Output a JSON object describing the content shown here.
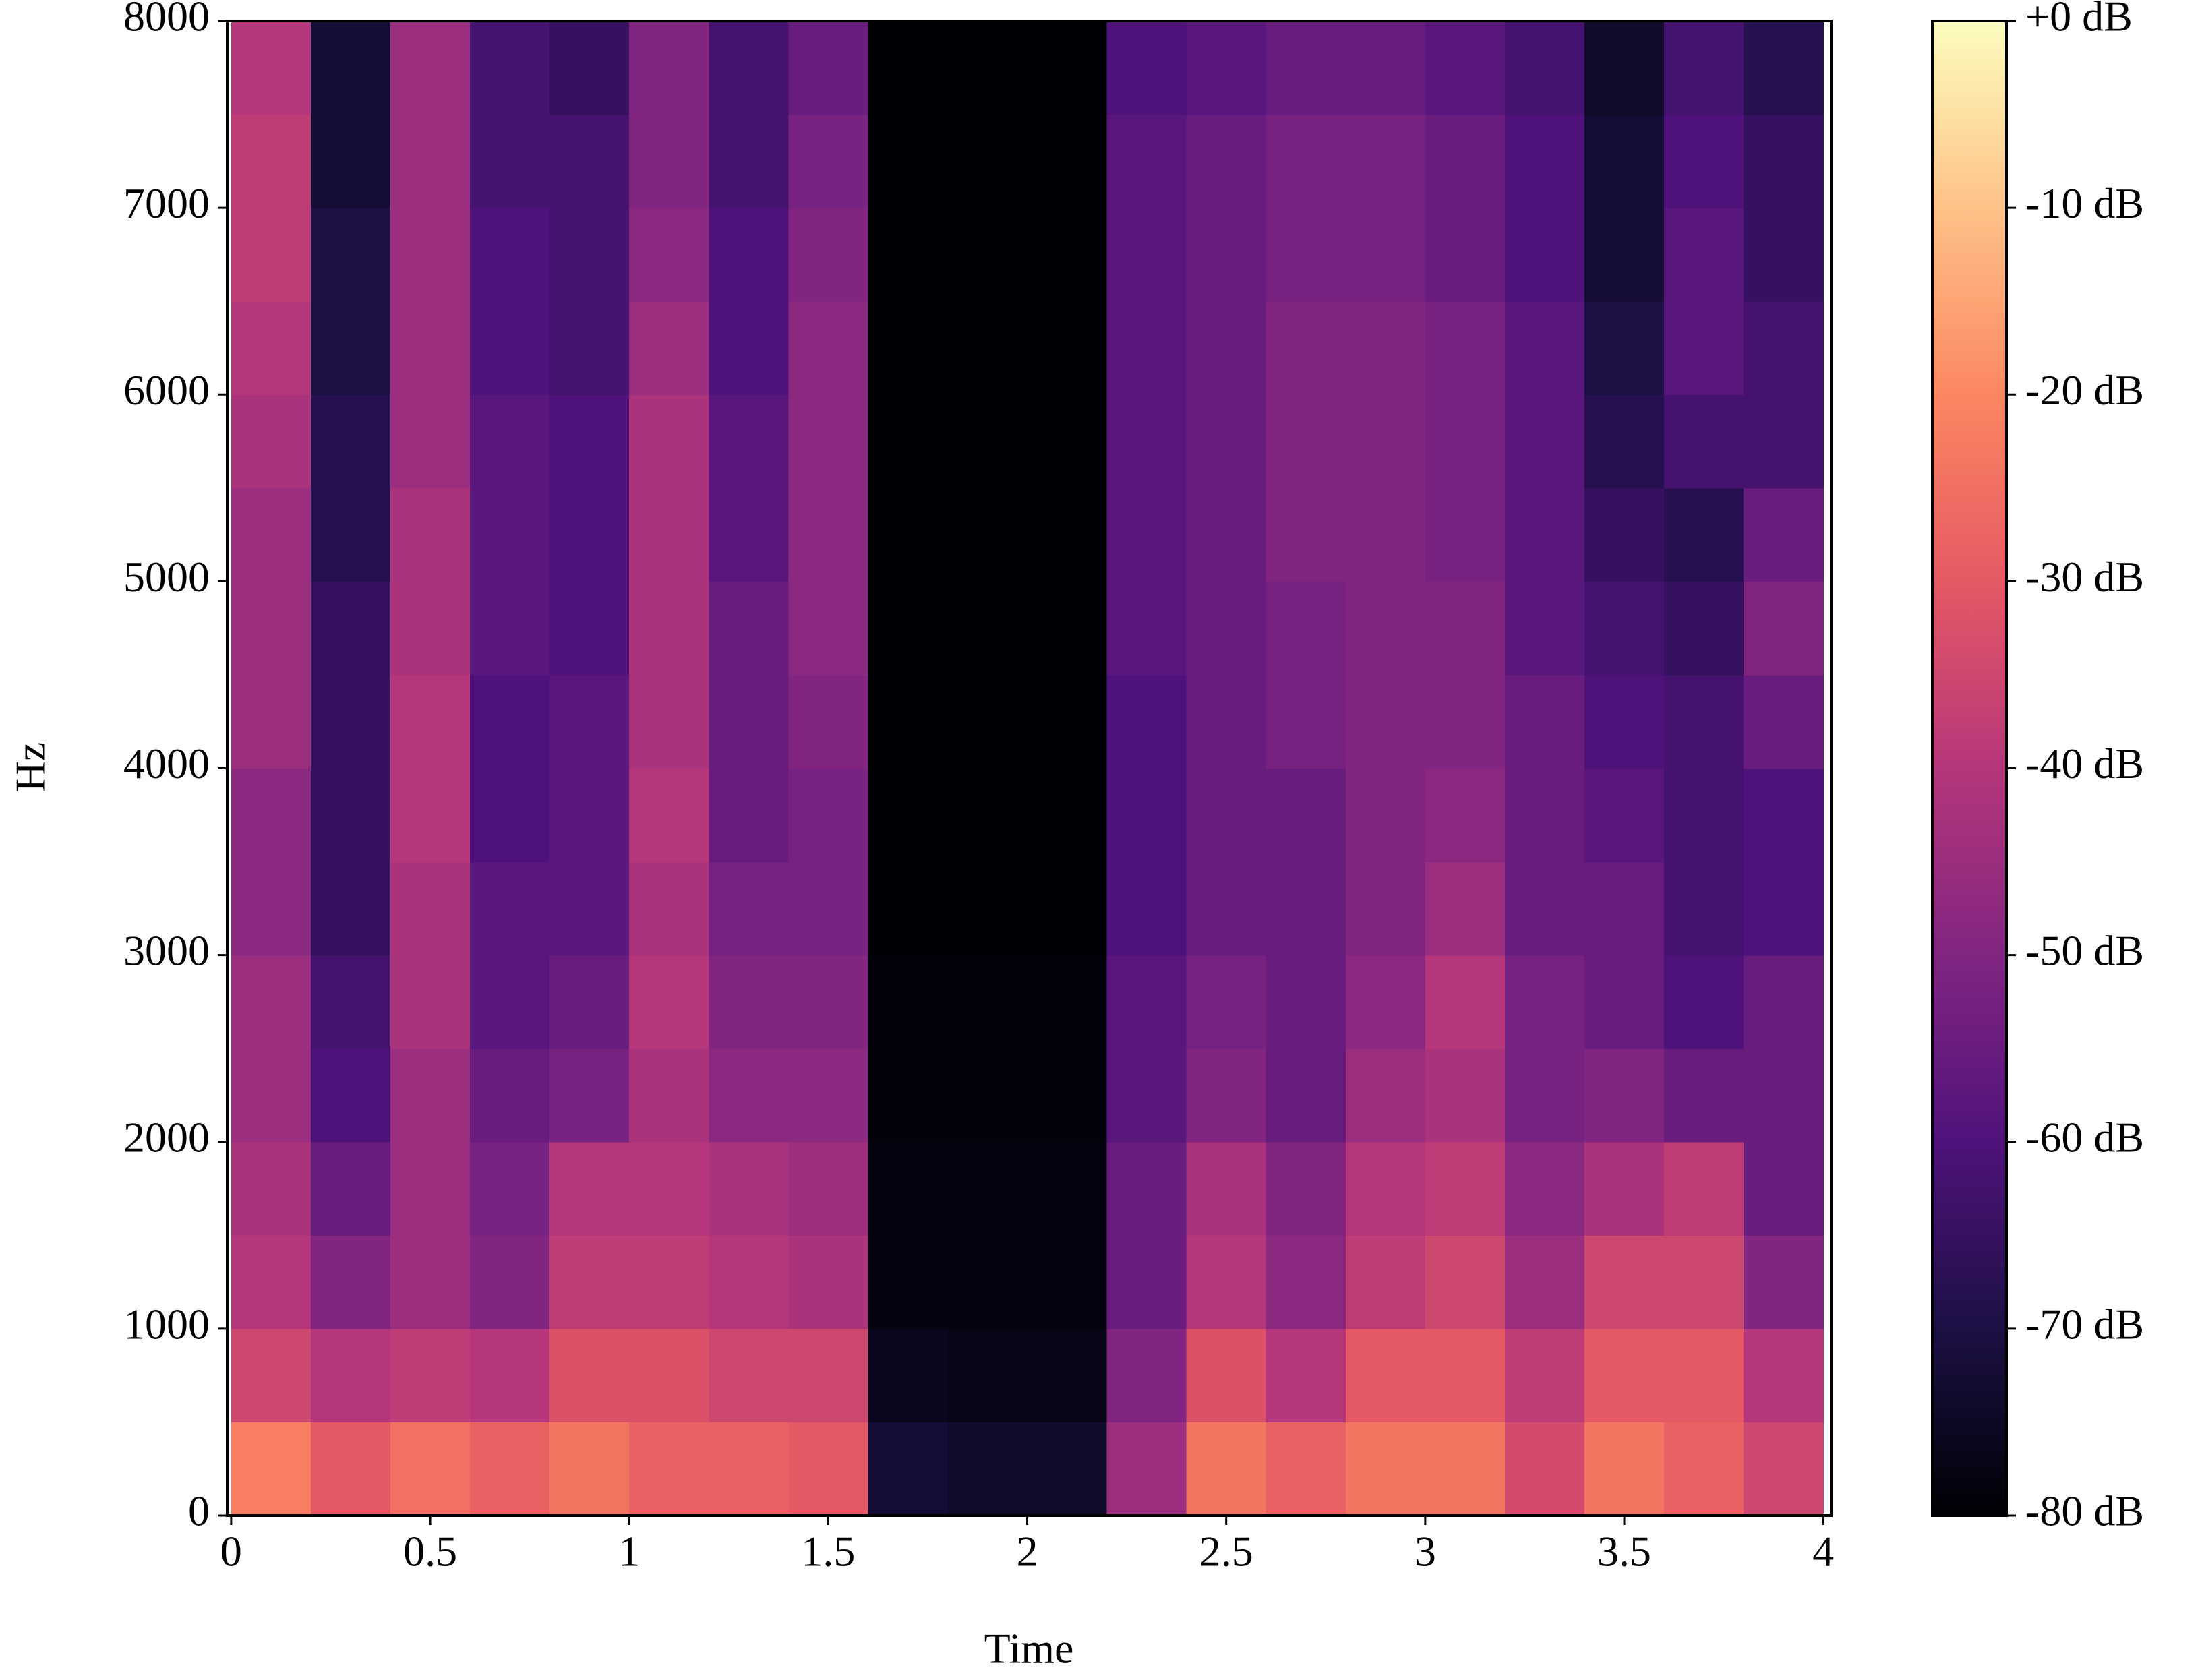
{
  "chart_data": {
    "type": "heatmap",
    "x_label": "Time",
    "y_label": "Hz",
    "colormap": "magma",
    "xlim": [
      -0.01,
      4.02
    ],
    "ylim": [
      0,
      8000
    ],
    "xticks": [
      0,
      0.5,
      1,
      1.5,
      2,
      2.5,
      3,
      3.5,
      4
    ],
    "yticks": [
      0,
      1000,
      2000,
      3000,
      4000,
      5000,
      6000,
      7000,
      8000
    ],
    "x": [
      0.1,
      0.3,
      0.5,
      0.7,
      0.9,
      1.1,
      1.3,
      1.5,
      1.7,
      1.9,
      2.1,
      2.3,
      2.5,
      2.7,
      2.9,
      3.1,
      3.3,
      3.5,
      3.7,
      3.9
    ],
    "y": [
      250,
      750,
      1250,
      1750,
      2250,
      2750,
      3250,
      3750,
      4250,
      4750,
      5250,
      5750,
      6250,
      6750,
      7250,
      7750
    ],
    "values": [
      [
        -22,
        -30,
        -25,
        -28,
        -24,
        -28,
        -28,
        -30,
        -72,
        -74,
        -74,
        -45,
        -24,
        -28,
        -24,
        -24,
        -34,
        -24,
        -28,
        -35
      ],
      [
        -35,
        -40,
        -38,
        -40,
        -32,
        -32,
        -35,
        -35,
        -76,
        -77,
        -77,
        -50,
        -32,
        -40,
        -30,
        -30,
        -38,
        -30,
        -30,
        -40
      ],
      [
        -40,
        -50,
        -45,
        -50,
        -38,
        -38,
        -40,
        -42,
        -78,
        -78,
        -78,
        -55,
        -40,
        -48,
        -38,
        -35,
        -45,
        -35,
        -35,
        -50
      ],
      [
        -42,
        -55,
        -45,
        -52,
        -40,
        -40,
        -42,
        -45,
        -78,
        -78,
        -78,
        -55,
        -42,
        -50,
        -40,
        -38,
        -48,
        -42,
        -38,
        -55
      ],
      [
        -45,
        -60,
        -45,
        -55,
        -52,
        -42,
        -48,
        -48,
        -79,
        -79,
        -79,
        -58,
        -50,
        -55,
        -45,
        -42,
        -52,
        -50,
        -55,
        -55
      ],
      [
        -45,
        -62,
        -42,
        -58,
        -55,
        -40,
        -50,
        -50,
        -79,
        -79,
        -79,
        -58,
        -52,
        -55,
        -48,
        -40,
        -52,
        -55,
        -60,
        -55
      ],
      [
        -48,
        -65,
        -42,
        -58,
        -58,
        -42,
        -52,
        -52,
        -80,
        -80,
        -80,
        -60,
        -55,
        -55,
        -50,
        -45,
        -55,
        -55,
        -62,
        -60
      ],
      [
        -48,
        -65,
        -40,
        -60,
        -58,
        -40,
        -55,
        -52,
        -80,
        -80,
        -80,
        -60,
        -55,
        -55,
        -50,
        -48,
        -55,
        -58,
        -62,
        -60
      ],
      [
        -45,
        -65,
        -40,
        -60,
        -58,
        -42,
        -55,
        -50,
        -80,
        -80,
        -80,
        -60,
        -55,
        -52,
        -50,
        -50,
        -55,
        -60,
        -62,
        -55
      ],
      [
        -45,
        -65,
        -42,
        -58,
        -60,
        -42,
        -55,
        -48,
        -80,
        -80,
        -80,
        -58,
        -55,
        -52,
        -50,
        -50,
        -58,
        -62,
        -65,
        -50
      ],
      [
        -45,
        -68,
        -42,
        -58,
        -60,
        -42,
        -58,
        -48,
        -80,
        -80,
        -80,
        -58,
        -55,
        -50,
        -50,
        -52,
        -58,
        -65,
        -68,
        -55
      ],
      [
        -42,
        -68,
        -45,
        -58,
        -60,
        -42,
        -58,
        -48,
        -80,
        -80,
        -80,
        -58,
        -55,
        -50,
        -50,
        -52,
        -58,
        -68,
        -62,
        -62
      ],
      [
        -40,
        -70,
        -45,
        -60,
        -62,
        -45,
        -60,
        -48,
        -80,
        -80,
        -80,
        -58,
        -55,
        -50,
        -50,
        -52,
        -58,
        -70,
        -58,
        -62
      ],
      [
        -38,
        -70,
        -45,
        -60,
        -62,
        -48,
        -60,
        -50,
        -80,
        -80,
        -80,
        -58,
        -55,
        -52,
        -52,
        -55,
        -60,
        -72,
        -58,
        -65
      ],
      [
        -38,
        -72,
        -45,
        -62,
        -62,
        -50,
        -62,
        -52,
        -80,
        -80,
        -80,
        -58,
        -55,
        -52,
        -52,
        -55,
        -60,
        -72,
        -60,
        -65
      ],
      [
        -40,
        -72,
        -45,
        -62,
        -65,
        -50,
        -62,
        -55,
        -80,
        -80,
        -80,
        -60,
        -58,
        -55,
        -55,
        -58,
        -62,
        -74,
        -62,
        -68
      ]
    ],
    "clim": [
      -80,
      0
    ],
    "cticks": [
      {
        "value": 0,
        "label": "+0 dB"
      },
      {
        "value": -10,
        "label": "-10 dB"
      },
      {
        "value": -20,
        "label": "-20 dB"
      },
      {
        "value": -30,
        "label": "-30 dB"
      },
      {
        "value": -40,
        "label": "-40 dB"
      },
      {
        "value": -50,
        "label": "-50 dB"
      },
      {
        "value": -60,
        "label": "-60 dB"
      },
      {
        "value": -70,
        "label": "-70 dB"
      },
      {
        "value": -80,
        "label": "-80 dB"
      }
    ]
  }
}
